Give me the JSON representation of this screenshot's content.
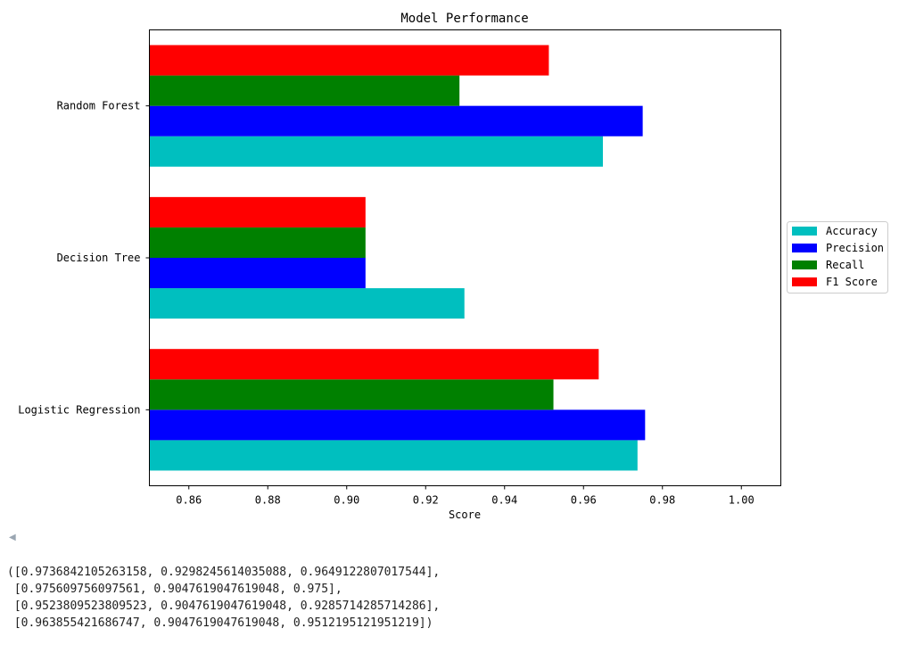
{
  "chart_data": {
    "type": "bar",
    "orientation": "horizontal",
    "title": "Model Performance",
    "xlabel": "Score",
    "ylabel": "",
    "categories": [
      "Logistic Regression",
      "Decision Tree",
      "Random Forest"
    ],
    "series": [
      {
        "name": "Accuracy",
        "color": "#00bfbf",
        "values": [
          0.9736842105263158,
          0.9298245614035088,
          0.9649122807017544
        ]
      },
      {
        "name": "Precision",
        "color": "#0000ff",
        "values": [
          0.975609756097561,
          0.9047619047619048,
          0.975
        ]
      },
      {
        "name": "Recall",
        "color": "#008000",
        "values": [
          0.9523809523809523,
          0.9047619047619048,
          0.9285714285714286
        ]
      },
      {
        "name": "F1 Score",
        "color": "#ff0000",
        "values": [
          0.963855421686747,
          0.9047619047619048,
          0.9512195121951219
        ]
      }
    ],
    "xlim": [
      0.85,
      1.01
    ],
    "xticks": [
      "0.86",
      "0.88",
      "0.90",
      "0.92",
      "0.94",
      "0.96",
      "0.98",
      "1.00"
    ],
    "xtick_values": [
      0.86,
      0.88,
      0.9,
      0.92,
      0.94,
      0.96,
      0.98,
      1.0
    ],
    "grid": false,
    "legend_position": "center-right, outside plot"
  },
  "output": {
    "scroll_icon": "left-arrow-icon",
    "lines": [
      "([0.9736842105263158, 0.9298245614035088, 0.9649122807017544],",
      " [0.975609756097561, 0.9047619047619048, 0.975],",
      " [0.9523809523809523, 0.9047619047619048, 0.9285714285714286],",
      " [0.963855421686747, 0.9047619047619048, 0.9512195121951219])"
    ]
  }
}
